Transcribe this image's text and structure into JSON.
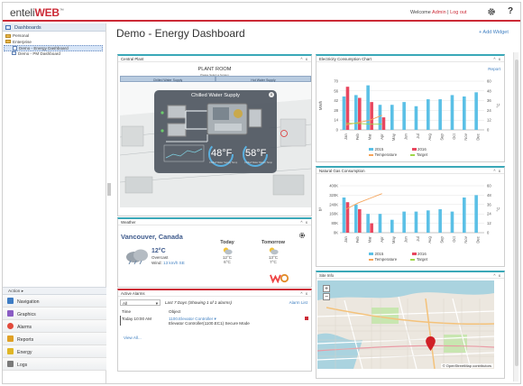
{
  "header": {
    "logo_main": "enteli",
    "logo_accent": "WEB",
    "logo_tm": "™",
    "welcome_prefix": "Welcome ",
    "user": "Admin",
    "separator": " | ",
    "logout": "Log out",
    "help": "?"
  },
  "sidebar": {
    "title": "Dashboards",
    "tree": [
      {
        "label": "Personal",
        "kind": "folder",
        "indent": 0
      },
      {
        "label": "Enterprise",
        "kind": "folder",
        "indent": 0
      },
      {
        "label": "Demo - Energy Dashboard",
        "kind": "doc",
        "indent": 1,
        "selected": true
      },
      {
        "label": "Demo - PM Dashboard",
        "kind": "doc",
        "indent": 1
      }
    ],
    "action_label": "Action",
    "nav": [
      {
        "label": "Navigation",
        "color": "#3e7cc4"
      },
      {
        "label": "Graphics",
        "color": "#8a5cc4"
      },
      {
        "label": "Alarms",
        "color": "#e24a3b"
      },
      {
        "label": "Reports",
        "color": "#e0a126"
      },
      {
        "label": "Energy",
        "color": "#e0b626"
      },
      {
        "label": "Logs",
        "color": "#7a7a7a"
      }
    ]
  },
  "main": {
    "title": "Demo - Energy Dashboard",
    "add_widget": "+ Add Widget"
  },
  "widgets": {
    "controls": "^ x",
    "plant": {
      "title": "Central Plant",
      "heading": "PLANT ROOM",
      "subheading": "Please Select a System",
      "tabs": [
        "Chilled Water Supply",
        "Hot Water Supply"
      ],
      "popup_title": "Chilled Water Supply",
      "popup_close": "x",
      "gauges": [
        {
          "value": "48°F",
          "label": "Chilled Water Supply Temp"
        },
        {
          "value": "58°F",
          "label": "Chilled Water Return Temp"
        }
      ]
    },
    "electricity": {
      "title": "Electricity Consumption Chart",
      "report": "Report"
    },
    "gas": {
      "title": "Natural Gas Consumption"
    },
    "weather": {
      "title": "Weather",
      "city": "Vancouver, Canada",
      "current_temp": "12°C",
      "condition": "Overcast",
      "wind_label": "Wind: ",
      "wind_value": "13 km/h SE",
      "today": {
        "label": "Today",
        "high": "12°C",
        "low": "6°C"
      },
      "tomorrow": {
        "label": "Tomorrow",
        "high": "13°C",
        "low": "7°C"
      }
    },
    "alarms": {
      "title": "Active Alarms",
      "filter": "All",
      "range": "Last 7 Days (Showing 1 of 1 alarms)",
      "list_link": "Alarm List",
      "col_time": "Time",
      "col_object": "Object",
      "row_time": "Today 10:00 AM",
      "row_object": "1100.Elevator Controller",
      "row_desc": "Elevator Controller(1100.EC1) Secure Mode",
      "view_all": "View All..."
    },
    "site": {
      "title": "Site Info",
      "zoom_in": "+",
      "zoom_out": "−",
      "attribution": "© OpenStreetMap contributors"
    }
  },
  "chart_data": [
    {
      "type": "bar",
      "title": "Electricity Consumption Chart",
      "categories": [
        "Jan",
        "Feb",
        "Mar",
        "Apr",
        "May",
        "Jun",
        "Jul",
        "Aug",
        "Sep",
        "Oct",
        "Nov",
        "Dec"
      ],
      "ylim": [
        0,
        70
      ],
      "y_ticks": [
        0,
        14,
        28,
        42,
        56,
        70
      ],
      "ylabel": "MWh",
      "y2lim": [
        0,
        60
      ],
      "y2_ticks": [
        0,
        12,
        24,
        36,
        48,
        60
      ],
      "series": [
        {
          "name": "2015",
          "type": "bar",
          "color": "#5bc0e6",
          "values": [
            48,
            50,
            64,
            36,
            36,
            40,
            34,
            44,
            44,
            50,
            48,
            54
          ]
        },
        {
          "name": "2016",
          "type": "bar",
          "color": "#e8475f",
          "values": [
            62,
            46,
            40,
            18,
            null,
            null,
            null,
            null,
            null,
            null,
            null,
            null
          ]
        },
        {
          "name": "Temperature",
          "type": "line",
          "color": "#f5a45a",
          "values": [
            6,
            9,
            12,
            18,
            null,
            null,
            null,
            null,
            null,
            null,
            null,
            null
          ]
        },
        {
          "name": "Target",
          "type": "line",
          "color": "#9fd64a",
          "values": [
            8,
            8,
            7,
            7,
            null,
            null,
            null,
            null,
            null,
            null,
            null,
            null
          ]
        }
      ],
      "legend": "bottom"
    },
    {
      "type": "bar",
      "title": "Natural Gas Consumption",
      "categories": [
        "Jan",
        "Feb",
        "Mar",
        "Apr",
        "May",
        "Jun",
        "Jul",
        "Aug",
        "Sep",
        "Oct",
        "Nov",
        "Dec"
      ],
      "ylim": [
        0,
        400
      ],
      "y_ticks": [
        "0K",
        "80K",
        "160K",
        "240K",
        "320K",
        "400K"
      ],
      "ylabel": "ft³",
      "y2lim": [
        0,
        60
      ],
      "y2_ticks": [
        0,
        12,
        24,
        36,
        48,
        60
      ],
      "series": [
        {
          "name": "2015",
          "type": "bar",
          "color": "#5bc0e6",
          "values": [
            300,
            240,
            160,
            160,
            110,
            180,
            180,
            190,
            200,
            180,
            300,
            320
          ]
        },
        {
          "name": "2016",
          "type": "bar",
          "color": "#e8475f",
          "values": [
            260,
            200,
            80,
            null,
            null,
            null,
            null,
            null,
            null,
            null,
            null,
            null
          ]
        },
        {
          "name": "Temperature",
          "type": "line",
          "color": "#f5a45a",
          "values": [
            30,
            38,
            44,
            50,
            null,
            null,
            null,
            null,
            null,
            null,
            null,
            null
          ]
        },
        {
          "name": "Target",
          "type": "line",
          "color": "#9fd64a",
          "values": [
            null,
            null,
            null,
            null,
            null,
            null,
            null,
            null,
            null,
            null,
            null,
            null
          ]
        }
      ],
      "legend": "bottom"
    }
  ]
}
